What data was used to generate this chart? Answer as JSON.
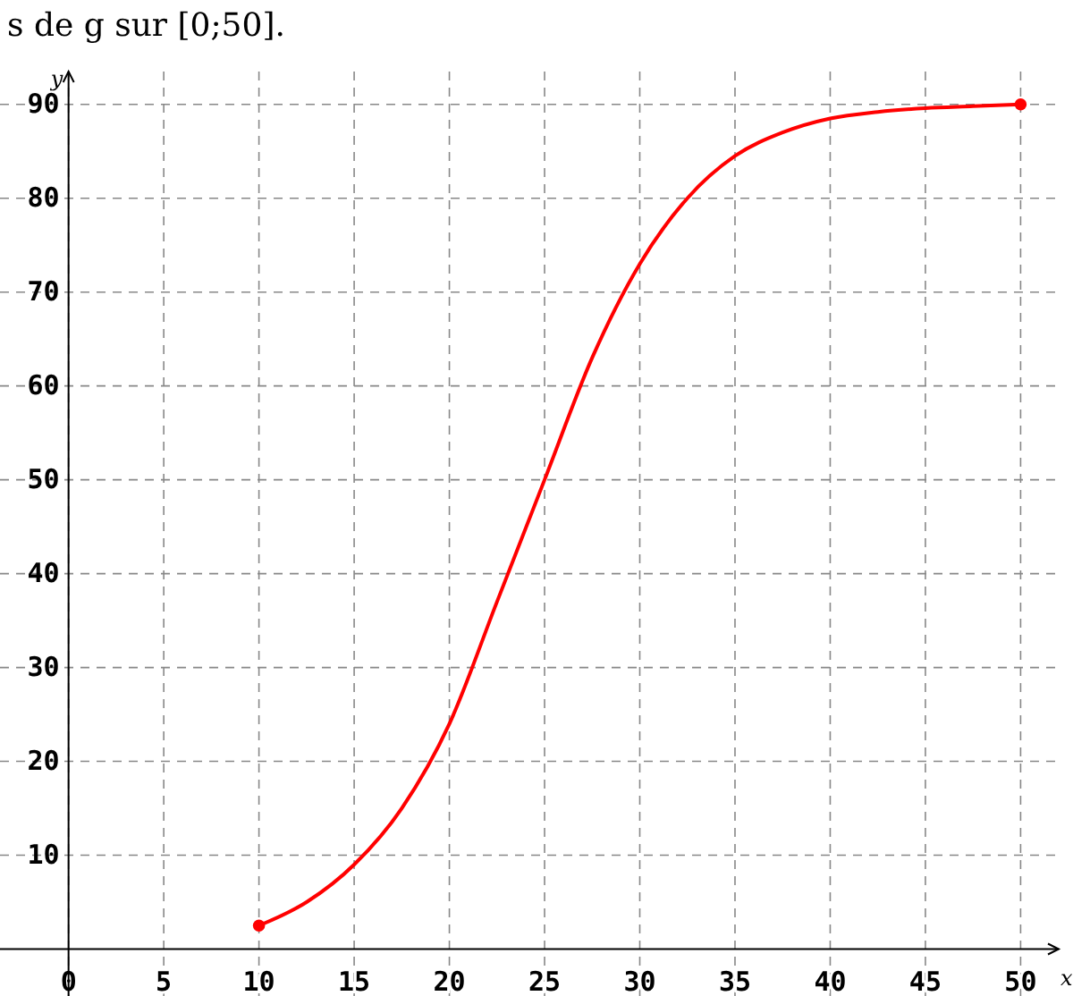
{
  "chart_data": {
    "type": "line",
    "title": "s de g sur [0;50].",
    "xlabel": "x",
    "ylabel": "y",
    "xlim": [
      -3.6,
      52
    ],
    "ylim": [
      -5,
      93.5
    ],
    "xticks": [
      0,
      5,
      10,
      15,
      20,
      25,
      30,
      35,
      40,
      45,
      50
    ],
    "yticks": [
      10,
      20,
      30,
      40,
      50,
      60,
      70,
      80,
      90
    ],
    "grid": true,
    "series": [
      {
        "color": "#ff0000",
        "x": [
          10,
          12.5,
          15,
          17.5,
          20,
          22.5,
          25,
          27.5,
          30,
          32.5,
          35,
          37.5,
          40,
          42.5,
          45,
          47.5,
          50
        ],
        "values": [
          2.5,
          5,
          9,
          15,
          24,
          37,
          50,
          63,
          73,
          80,
          84.5,
          87,
          88.5,
          89.2,
          89.6,
          89.8,
          90
        ],
        "marker": "none",
        "line_style": "solid"
      },
      {
        "type": "scatter",
        "color": "#ff0000",
        "x": [
          10,
          50
        ],
        "values": [
          2.5,
          90
        ],
        "marker": "circle"
      }
    ]
  }
}
